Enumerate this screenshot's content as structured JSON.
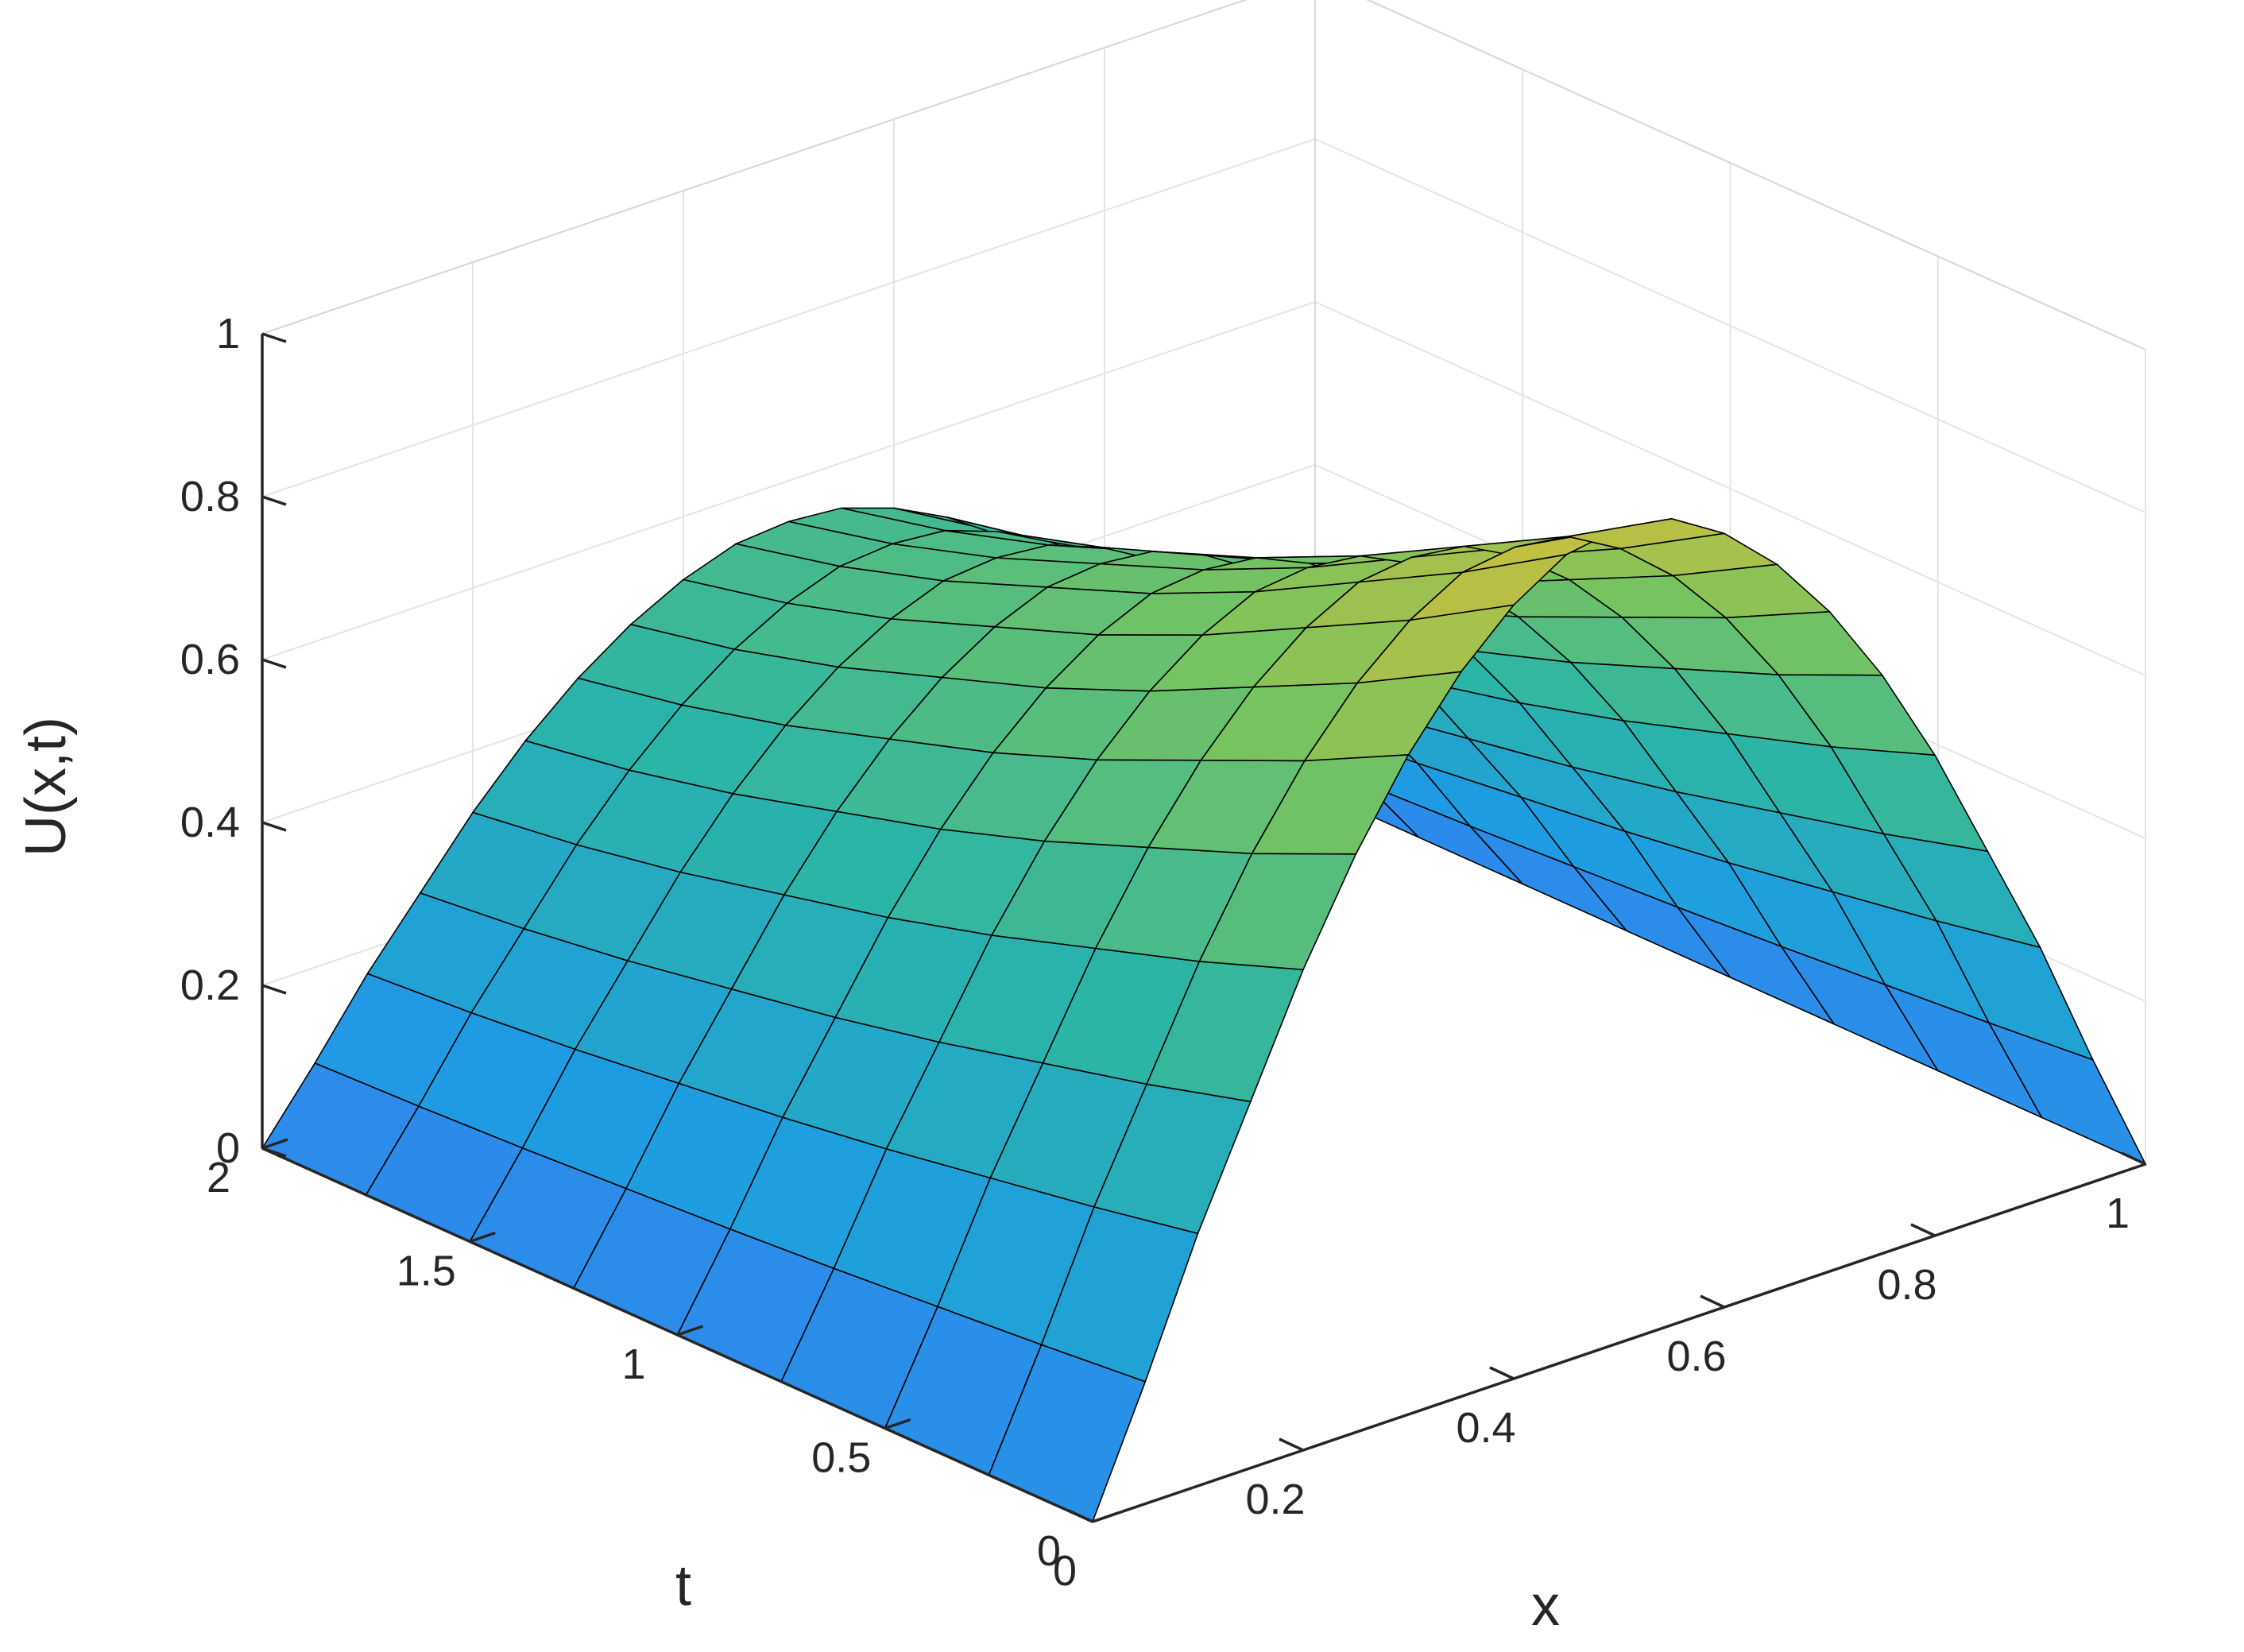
{
  "chart_data": {
    "type": "surface",
    "title": "",
    "xlabel": "x",
    "ylabel": "t",
    "zlabel": "U(x,t)",
    "xlim": [
      0,
      1
    ],
    "ylim": [
      0,
      2
    ],
    "zlim": [
      0,
      1
    ],
    "x_ticks": [
      "0",
      "0.2",
      "0.4",
      "0.6",
      "0.8",
      "1"
    ],
    "t_ticks": [
      "0",
      "0.5",
      "1",
      "1.5",
      "2"
    ],
    "z_ticks": [
      "0",
      "0.2",
      "0.4",
      "0.6",
      "0.8",
      "1"
    ],
    "grid": true,
    "colormap": "parula",
    "colors": {
      "low": "#3d4de8",
      "mid": "#2bb5a6",
      "high": "#f2c230",
      "mesh": "#000000"
    },
    "description_values": {
      "x_points": [
        0,
        0.05,
        0.1,
        0.15,
        0.2,
        0.25,
        0.3,
        0.35,
        0.4,
        0.45,
        0.5,
        0.55,
        0.6,
        0.65,
        0.7,
        0.75,
        0.8,
        0.85,
        0.9,
        0.95,
        1
      ],
      "U_at_t0": [
        0,
        0.15,
        0.31,
        0.45,
        0.59,
        0.71,
        0.81,
        0.89,
        0.95,
        0.99,
        1,
        0.99,
        0.95,
        0.89,
        0.81,
        0.71,
        0.59,
        0.45,
        0.31,
        0.15,
        0
      ],
      "t_slices": [
        0,
        0.25,
        0.5,
        0.75,
        1,
        1.25,
        1.5,
        1.75,
        2
      ],
      "U_peak_by_t": [
        1,
        0.92,
        0.85,
        0.78,
        0.72,
        0.67,
        0.62,
        0.58,
        0.55
      ]
    }
  }
}
